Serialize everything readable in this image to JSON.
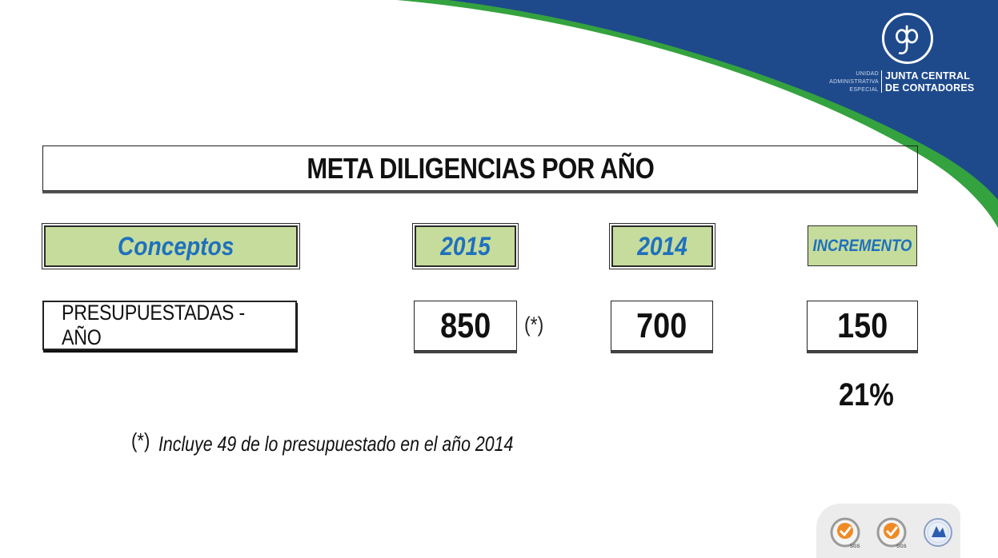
{
  "colors": {
    "brand_blue": "#1e4a8c",
    "brand_green": "#34a23f",
    "header_fill": "#c6dc9c",
    "header_text": "#1f70bd"
  },
  "logo": {
    "icon": "jcc-monogram-icon",
    "unit_lines": [
      "UNIDAD",
      "ADMINISTRATIVA",
      "ESPECIAL"
    ],
    "name_lines": [
      "JUNTA CENTRAL",
      "DE CONTADORES"
    ]
  },
  "table": {
    "title": "META DILIGENCIAS POR AÑO",
    "headers": {
      "concepts": "Conceptos",
      "year_2015": "2015",
      "year_2014": "2014",
      "increment": "INCREMENTO"
    },
    "row": {
      "label": "PRESUPUESTADAS - AÑO",
      "value_2015": "850",
      "note_mark": "(*)",
      "value_2014": "700",
      "increment": "150"
    },
    "increment_percent": "21%"
  },
  "footnote": {
    "mark": "(*)",
    "text": "Incluye 49 de lo presupuestado en el año 2014"
  },
  "certifications": [
    {
      "icon": "sgs-certification-icon",
      "label": "SGS"
    },
    {
      "icon": "sgs-certification-icon",
      "label": "SGS"
    },
    {
      "icon": "government-seal-icon"
    }
  ]
}
